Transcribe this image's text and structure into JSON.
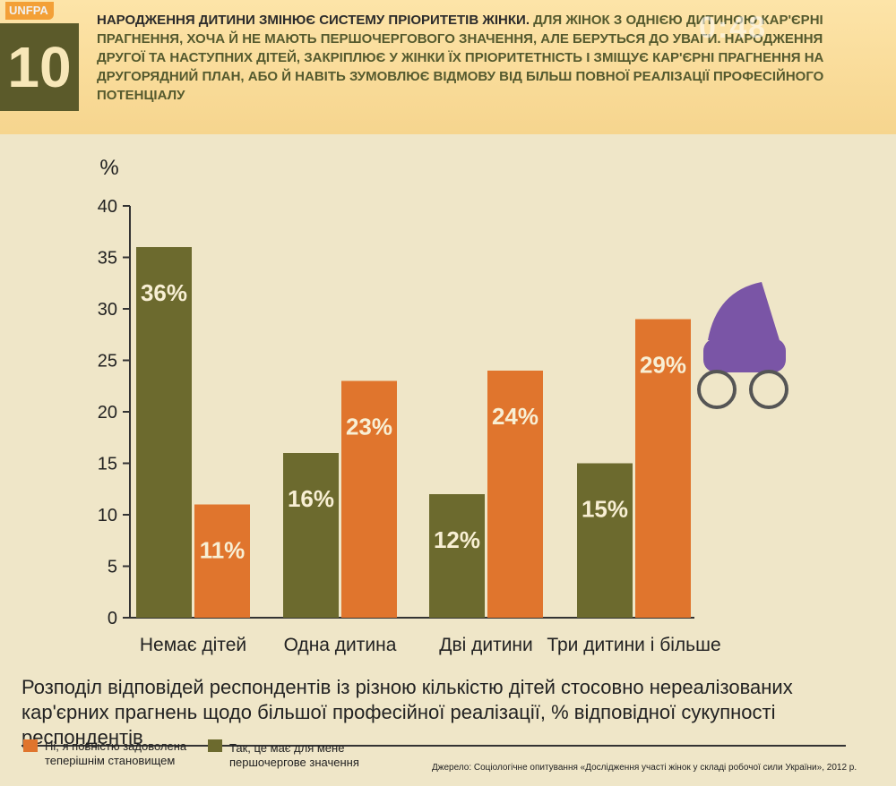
{
  "header": {
    "logo": "UNFPA",
    "number": "10",
    "headline_strong": "Народження дитини змінює систему пріоритетів жінки.",
    "headline_body": "Для жінок з однією дитиною кар'єрні прагнення, хоча й не мають першочергового значення, але беруться до уваги. Народження другої та наступних дітей, закріплює у жінки їх пріоритетність і змiщує кар'єрні прагнення на другорядний план, або й навіть зумовлює відмову від більш повної реалізації професійного потенціалу",
    "watermark": "0:48"
  },
  "colors": {
    "orange": "#e0752d",
    "olive": "#6c6a2e",
    "axis": "#333333",
    "bar_label": "#f8efd4"
  },
  "chart_data": {
    "type": "bar",
    "ylabel": "%",
    "ylim": [
      0,
      40
    ],
    "yticks": [
      0,
      5,
      10,
      15,
      20,
      25,
      30,
      35,
      40
    ],
    "categories": [
      "Немає дітей",
      "Одна дитина",
      "Дві дитини",
      "Три дитини і більше"
    ],
    "series": [
      {
        "name": "Так, це має для мене першочергове значення",
        "color": "#6c6a2e",
        "values": [
          36,
          16,
          12,
          15
        ],
        "labels": [
          "36%",
          "16%",
          "12%",
          "15%"
        ]
      },
      {
        "name": "Ні, я повністю задоволена теперішнім становищем",
        "color": "#e0752d",
        "values": [
          11,
          23,
          24,
          29
        ],
        "labels": [
          "11%",
          "23%",
          "24%",
          "29%"
        ]
      }
    ]
  },
  "caption": "Розподіл відповідей респондентів із різною кількістю дітей стосовно нереалізованих кар'єрних прагнень щодо більшої професійної реалізації, % відповідної сукупності респондентів",
  "legend": {
    "no_line1": "Ні, я повністю задоволена",
    "no_line2": "теперішнім становищем",
    "yes_line1": "Так, це має для мене",
    "yes_line2": "першочергове значення"
  },
  "source": "Джерело: Соціологічне опитування «Дослідження участі жінок у складі робочої сили України», 2012 р."
}
